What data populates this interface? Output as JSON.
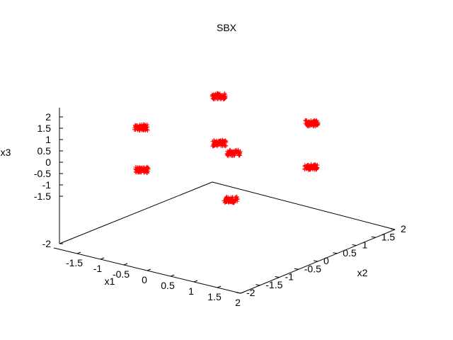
{
  "chart_data": {
    "type": "scatter",
    "dimensions": 3,
    "title": "SBX",
    "xlabel": "x1",
    "ylabel": "x2",
    "zlabel": "x3",
    "xlim": [
      -2,
      2
    ],
    "ylim": [
      -2,
      2
    ],
    "zlim": [
      -2,
      2
    ],
    "xticks": [
      "-1.5",
      "-1",
      "-0.5",
      "0",
      "0.5",
      "1",
      "1.5",
      "2"
    ],
    "yticks": [
      "-2",
      "-1.5",
      "-1",
      "-0.5",
      "0",
      "0.5",
      "1",
      "1.5",
      "2"
    ],
    "zticks": [
      "-2",
      "-1.5",
      "-1",
      "-0.5",
      "0",
      "0.5",
      "1",
      "1.5",
      "2"
    ],
    "marker": "plus",
    "series_color": "#ff0000",
    "clusters": [
      {
        "x": 0,
        "y": 0,
        "z": 2
      },
      {
        "x": -1,
        "y": -1,
        "z": 1
      },
      {
        "x": 1,
        "y": 1,
        "z": 1
      },
      {
        "x": -1,
        "y": -1,
        "z": -1
      },
      {
        "x": 1,
        "y": 1,
        "z": -1
      },
      {
        "x": 0,
        "y": 0,
        "z": 0
      },
      {
        "x": 0.2,
        "y": 0.2,
        "z": -0.2
      },
      {
        "x": 0,
        "y": 0,
        "z": -2
      }
    ],
    "cluster_spread": 0.12,
    "points_per_cluster": 70
  }
}
